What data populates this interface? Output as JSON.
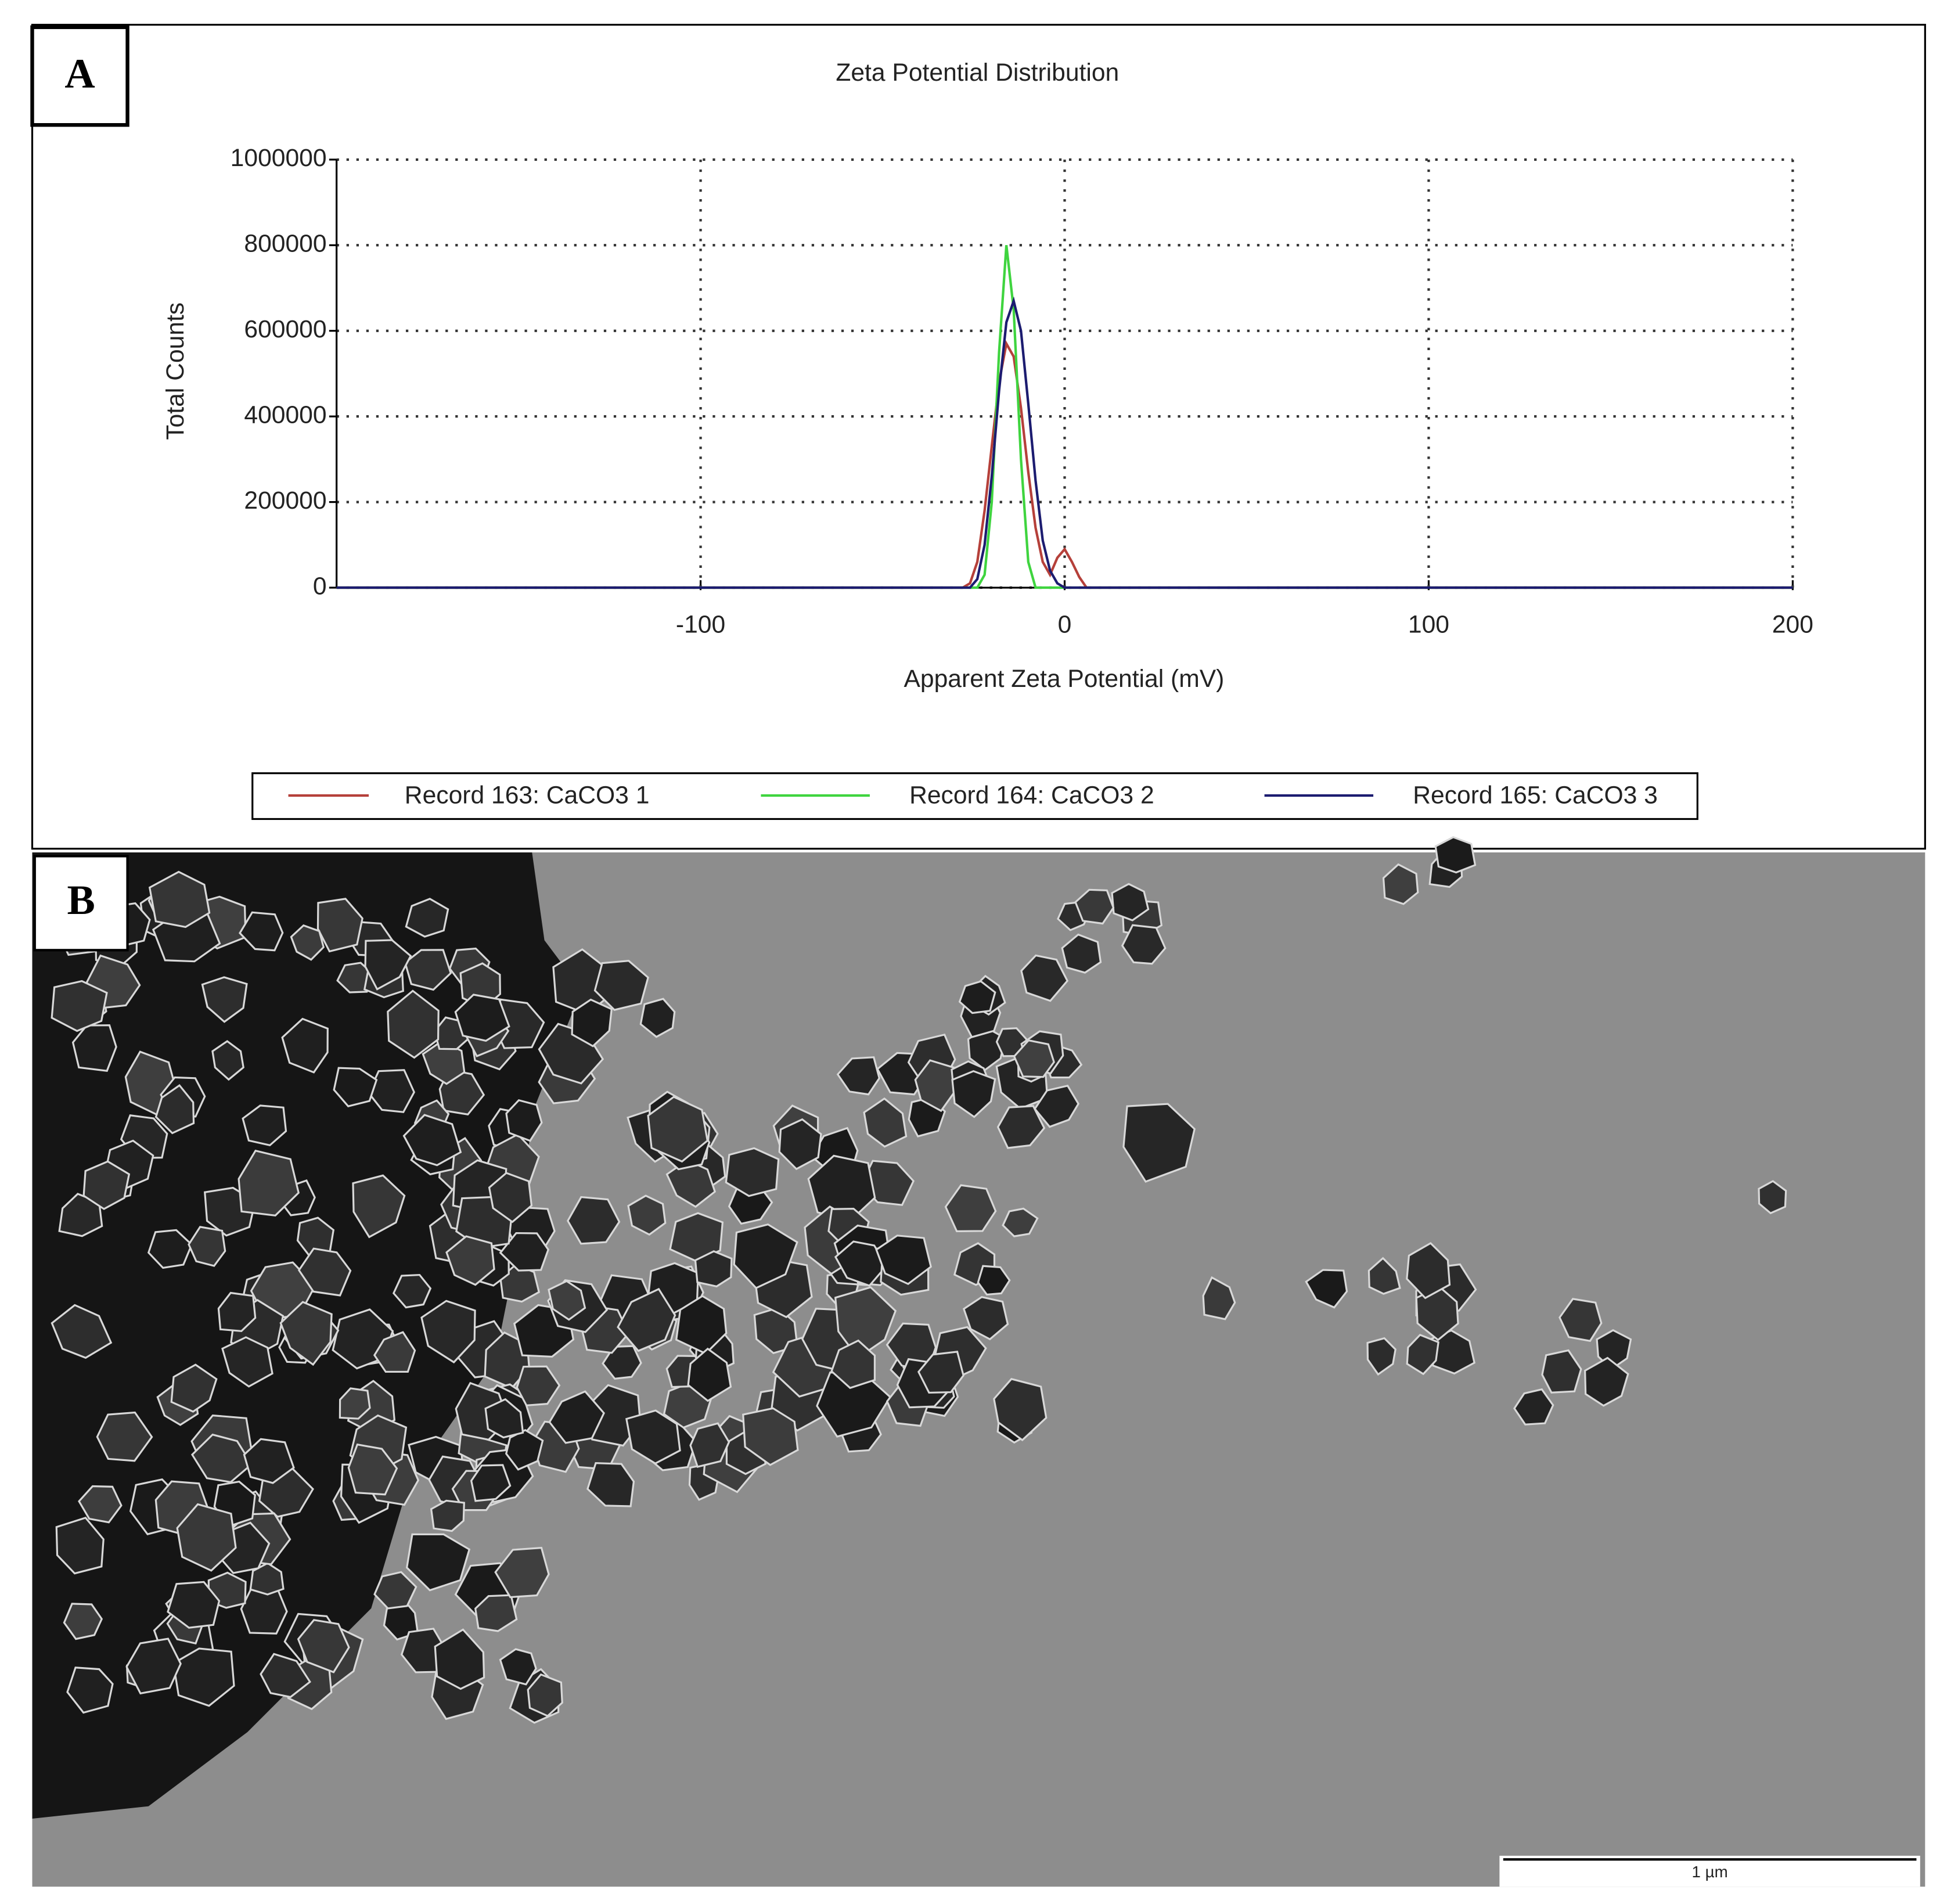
{
  "panels": [
    "A",
    "B"
  ],
  "scale_bar": "1 µm",
  "chart_data": {
    "type": "line",
    "title": "Zeta Potential Distribution",
    "x_label": "Apparent Zeta Potential (mV)",
    "y_label": "Total Counts",
    "x": [
      -200,
      -28,
      -26,
      -24,
      -22,
      -20,
      -18,
      -16,
      -14,
      -12,
      -10,
      -8,
      -6,
      -4,
      -2,
      0,
      2,
      4,
      6,
      200
    ],
    "series": [
      {
        "name": "Record 163: CaCO3 1",
        "color": "#b5403a",
        "values": [
          0,
          0,
          10000,
          60000,
          180000,
          330000,
          480000,
          570000,
          540000,
          420000,
          270000,
          140000,
          60000,
          30000,
          70000,
          90000,
          60000,
          25000,
          0,
          0
        ]
      },
      {
        "name": "Record 164: CaCO3 2",
        "color": "#3fd43f",
        "values": [
          0,
          0,
          0,
          0,
          30000,
          200000,
          550000,
          800000,
          650000,
          300000,
          60000,
          0,
          0,
          0,
          0,
          0,
          0,
          0,
          0,
          0
        ]
      },
      {
        "name": "Record 165: CaCO3 3",
        "color": "#1c1c70",
        "values": [
          0,
          0,
          0,
          20000,
          100000,
          260000,
          460000,
          620000,
          670000,
          600000,
          430000,
          250000,
          110000,
          40000,
          10000,
          0,
          0,
          0,
          0,
          0
        ]
      }
    ],
    "xlim": [
      -200,
      200
    ],
    "ylim": [
      0,
      1000000
    ],
    "xticks": [
      -100,
      0,
      100,
      200
    ],
    "yticks": [
      0,
      200000,
      400000,
      600000,
      800000,
      1000000
    ],
    "grid": true,
    "legend": "bottom"
  }
}
